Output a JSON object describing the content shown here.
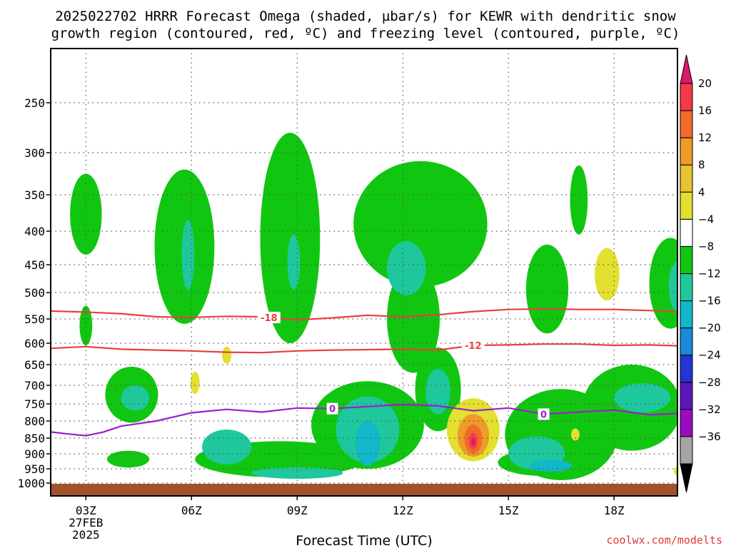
{
  "chart_data": {
    "type": "contour",
    "title_line1": "2025022702 HRRR Forecast Omega (shaded, µbar/s) for KEWR with dendritic snow",
    "title_line2": "growth region (contoured, red, ºC) and freezing level (contoured, purple, ºC)",
    "xlabel": "Forecast Time (UTC)",
    "credit": "coolwx.com/modelts",
    "x_ticks": [
      {
        "hour": 3,
        "label": "03Z",
        "sub1": "27FEB",
        "sub2": "2025"
      },
      {
        "hour": 6,
        "label": "06Z"
      },
      {
        "hour": 9,
        "label": "09Z"
      },
      {
        "hour": 12,
        "label": "12Z"
      },
      {
        "hour": 15,
        "label": "15Z"
      },
      {
        "hour": 18,
        "label": "18Z"
      }
    ],
    "xlim": [
      2,
      19.8
    ],
    "y_levels": [
      250,
      300,
      350,
      400,
      450,
      500,
      550,
      600,
      650,
      700,
      750,
      800,
      850,
      900,
      950,
      1000
    ],
    "colorbar": {
      "labels": [
        "20",
        "16",
        "12",
        "8",
        "4",
        "−4",
        "−8",
        "−12",
        "−16",
        "−20",
        "−24",
        "−28",
        "−32",
        "−36"
      ],
      "colors": [
        "#f5394b",
        "#f26a2a",
        "#ee9b28",
        "#e8c431",
        "#e3e030",
        "#ffffff",
        "#11c611",
        "#1ec89c",
        "#12b7c9",
        "#1a8ad9",
        "#2335d2",
        "#5b17b8",
        "#9c0cbf",
        "#a6a6a6"
      ],
      "top_color": "#e0176e",
      "bottom_color": "#000000"
    },
    "contour_lines": [
      {
        "name": "-18",
        "color": "#e8413a",
        "points": [
          [
            2,
            535
          ],
          [
            3,
            537
          ],
          [
            4,
            540
          ],
          [
            5,
            546
          ],
          [
            6,
            547
          ],
          [
            7,
            545
          ],
          [
            8,
            546
          ],
          [
            9,
            552
          ],
          [
            10,
            548
          ],
          [
            11,
            543
          ],
          [
            12,
            546
          ],
          [
            13,
            542
          ],
          [
            14,
            536
          ],
          [
            15,
            532
          ],
          [
            16,
            531
          ],
          [
            17,
            532
          ],
          [
            18,
            532
          ],
          [
            19,
            534
          ],
          [
            19.8,
            536
          ]
        ],
        "label_at": 8.2
      },
      {
        "name": "-12",
        "color": "#e8413a",
        "points": [
          [
            2,
            612
          ],
          [
            3,
            608
          ],
          [
            4,
            614
          ],
          [
            5,
            616
          ],
          [
            6,
            618
          ],
          [
            7,
            621
          ],
          [
            8,
            622
          ],
          [
            9,
            618
          ],
          [
            10,
            616
          ],
          [
            11,
            615
          ],
          [
            12,
            614
          ],
          [
            13,
            616
          ],
          [
            14,
            605
          ],
          [
            15,
            604
          ],
          [
            16,
            602
          ],
          [
            17,
            602
          ],
          [
            18,
            605
          ],
          [
            19,
            604
          ],
          [
            19.8,
            606
          ]
        ],
        "label_at": 14.0
      },
      {
        "name": "0",
        "color": "#9b1ecf",
        "points": [
          [
            2,
            832
          ],
          [
            2.5,
            838
          ],
          [
            3,
            843
          ],
          [
            3.5,
            832
          ],
          [
            4,
            815
          ],
          [
            5,
            800
          ],
          [
            6,
            776
          ],
          [
            7,
            766
          ],
          [
            8,
            774
          ],
          [
            9,
            762
          ],
          [
            10,
            764
          ],
          [
            11,
            758
          ],
          [
            12,
            752
          ],
          [
            13,
            756
          ],
          [
            14,
            770
          ],
          [
            15,
            762
          ],
          [
            16,
            780
          ],
          [
            17,
            774
          ],
          [
            18,
            768
          ],
          [
            19,
            782
          ],
          [
            19.8,
            778
          ]
        ],
        "label_at": 10.0
      },
      {
        "name": "0",
        "color": "#9b1ecf",
        "points": [],
        "label_at": 16.0
      }
    ],
    "omega_regions": [
      {
        "level": "-4",
        "color": "#11c611",
        "cx": 3.0,
        "cp": 380,
        "rx": 0.45,
        "rp": 55
      },
      {
        "level": "-4",
        "color": "#11c611",
        "cx": 3.0,
        "cp": 565,
        "rx": 0.18,
        "rp": 40
      },
      {
        "level": "-4",
        "color": "#11c611",
        "cx": 5.8,
        "cp": 440,
        "rx": 0.85,
        "rp": 120
      },
      {
        "level": "-4",
        "color": "#11c611",
        "cx": 8.8,
        "cp": 440,
        "rx": 0.85,
        "rp": 160
      },
      {
        "level": "-4",
        "color": "#11c611",
        "cx": 12.5,
        "cp": 400,
        "rx": 1.9,
        "rp": 90
      },
      {
        "level": "-4",
        "color": "#11c611",
        "cx": 12.3,
        "cp": 560,
        "rx": 0.75,
        "rp": 110
      },
      {
        "level": "-4",
        "color": "#11c611",
        "cx": 16.1,
        "cp": 500,
        "rx": 0.6,
        "rp": 80
      },
      {
        "level": "-4",
        "color": "#11c611",
        "cx": 17.0,
        "cp": 360,
        "rx": 0.25,
        "rp": 45
      },
      {
        "level": "-4",
        "color": "#11c611",
        "cx": 19.6,
        "cp": 490,
        "rx": 0.6,
        "rp": 80
      },
      {
        "level": "-4",
        "color": "#11c611",
        "cx": 4.3,
        "cp": 730,
        "rx": 0.75,
        "rp": 75
      },
      {
        "level": "-4",
        "color": "#11c611",
        "cx": 4.2,
        "cp": 918,
        "rx": 0.6,
        "rp": 28
      },
      {
        "level": "-4",
        "color": "#11c611",
        "cx": 8.5,
        "cp": 920,
        "rx": 2.4,
        "rp": 60
      },
      {
        "level": "-4",
        "color": "#11c611",
        "cx": 11.0,
        "cp": 820,
        "rx": 1.6,
        "rp": 130
      },
      {
        "level": "-4",
        "color": "#11c611",
        "cx": 13.0,
        "cp": 720,
        "rx": 0.65,
        "rp": 110
      },
      {
        "level": "-4",
        "color": "#11c611",
        "cx": 16.5,
        "cp": 850,
        "rx": 1.6,
        "rp": 140
      },
      {
        "level": "-4",
        "color": "#11c611",
        "cx": 18.5,
        "cp": 770,
        "rx": 1.4,
        "rp": 120
      },
      {
        "level": "-4",
        "color": "#11c611",
        "cx": 16.0,
        "cp": 930,
        "rx": 1.3,
        "rp": 45
      },
      {
        "level": "-8",
        "color": "#1ec89c",
        "cx": 5.9,
        "cp": 440,
        "rx": 0.18,
        "rp": 55
      },
      {
        "level": "-8",
        "color": "#1ec89c",
        "cx": 8.9,
        "cp": 450,
        "rx": 0.18,
        "rp": 45
      },
      {
        "level": "-8",
        "color": "#1ec89c",
        "cx": 12.1,
        "cp": 460,
        "rx": 0.55,
        "rp": 45
      },
      {
        "level": "-8",
        "color": "#1ec89c",
        "cx": 19.8,
        "cp": 490,
        "rx": 0.25,
        "rp": 45
      },
      {
        "level": "-8",
        "color": "#1ec89c",
        "cx": 4.4,
        "cp": 735,
        "rx": 0.4,
        "rp": 35
      },
      {
        "level": "-8",
        "color": "#1ec89c",
        "cx": 7.0,
        "cp": 880,
        "rx": 0.7,
        "rp": 55
      },
      {
        "level": "-8",
        "color": "#1ec89c",
        "cx": 9.0,
        "cp": 965,
        "rx": 1.3,
        "rp": 20
      },
      {
        "level": "-8",
        "color": "#1ec89c",
        "cx": 11.0,
        "cp": 830,
        "rx": 0.9,
        "rp": 100
      },
      {
        "level": "-8",
        "color": "#1ec89c",
        "cx": 13.0,
        "cp": 720,
        "rx": 0.35,
        "rp": 60
      },
      {
        "level": "-8",
        "color": "#1ec89c",
        "cx": 15.8,
        "cp": 900,
        "rx": 0.8,
        "rp": 55
      },
      {
        "level": "-8",
        "color": "#1ec89c",
        "cx": 18.8,
        "cp": 735,
        "rx": 0.8,
        "rp": 40
      },
      {
        "level": "-12",
        "color": "#12b7c9",
        "cx": 11.0,
        "cp": 870,
        "rx": 0.35,
        "rp": 70
      },
      {
        "level": "-12",
        "color": "#12b7c9",
        "cx": 16.2,
        "cp": 940,
        "rx": 0.6,
        "rp": 20
      },
      {
        "level": "4",
        "color": "#e3e030",
        "cx": 14.0,
        "cp": 830,
        "rx": 0.75,
        "rp": 95
      },
      {
        "level": "4",
        "color": "#e3e030",
        "cx": 17.8,
        "cp": 470,
        "rx": 0.35,
        "rp": 45
      },
      {
        "level": "4",
        "color": "#e3e030",
        "cx": 7.0,
        "cp": 628,
        "rx": 0.13,
        "rp": 20
      },
      {
        "level": "4",
        "color": "#e3e030",
        "cx": 6.1,
        "cp": 695,
        "rx": 0.13,
        "rp": 28
      },
      {
        "level": "4",
        "color": "#e3e030",
        "cx": 16.9,
        "cp": 840,
        "rx": 0.12,
        "rp": 18
      },
      {
        "level": "4",
        "color": "#e3e030",
        "cx": 19.8,
        "cp": 958,
        "rx": 0.1,
        "rp": 15
      },
      {
        "level": "8",
        "color": "#ee9b28",
        "cx": 14.0,
        "cp": 845,
        "rx": 0.45,
        "rp": 65
      },
      {
        "level": "12",
        "color": "#f26a2a",
        "cx": 14.0,
        "cp": 855,
        "rx": 0.25,
        "rp": 45
      },
      {
        "level": "16",
        "color": "#f5394b",
        "cx": 14.0,
        "cp": 860,
        "rx": 0.12,
        "rp": 25
      },
      {
        "level": "20",
        "color": "#e0176e",
        "cx": 14.0,
        "cp": 862,
        "rx": 0.06,
        "rp": 12
      }
    ],
    "terrain_color": "#a0522d"
  }
}
